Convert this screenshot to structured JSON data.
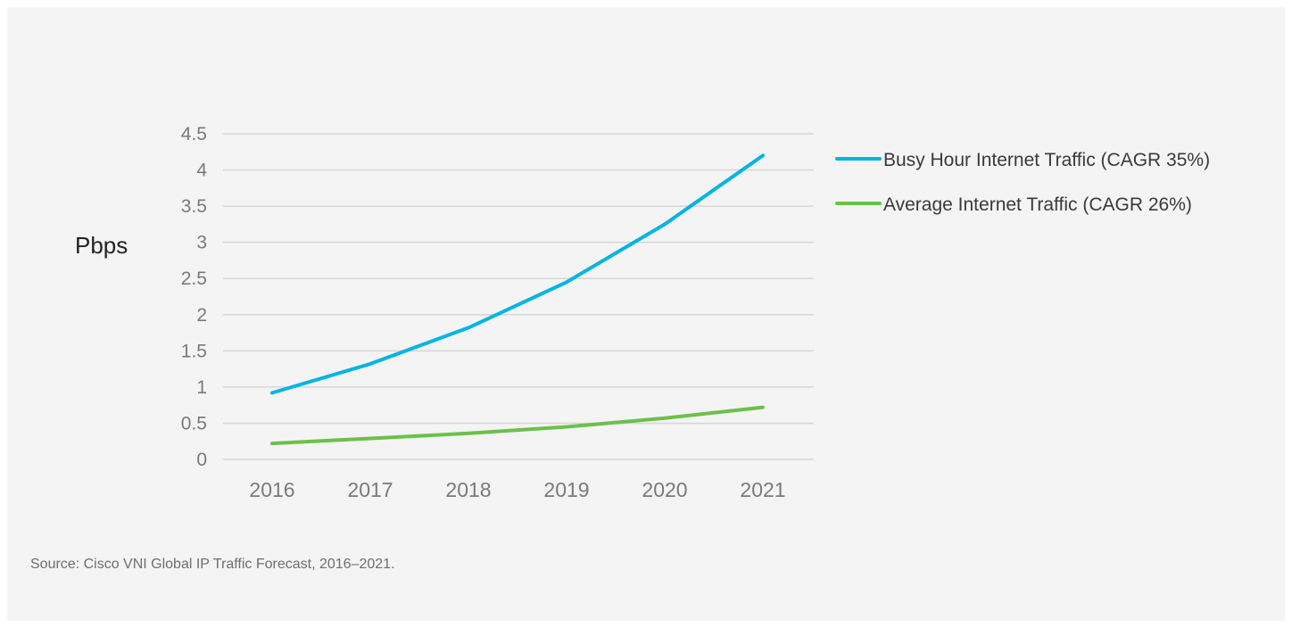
{
  "chart_data": {
    "type": "line",
    "title": "",
    "xlabel": "",
    "ylabel": "Pbps",
    "categories": [
      "2016",
      "2017",
      "2018",
      "2019",
      "2020",
      "2021"
    ],
    "ylim": [
      0,
      4.5
    ],
    "yticks": [
      0,
      0.5,
      1,
      1.5,
      2,
      2.5,
      3,
      3.5,
      4,
      4.5
    ],
    "ytick_labels": [
      "0",
      "0.5",
      "1",
      "1.5",
      "2",
      "2.5",
      "3",
      "3.5",
      "4",
      "4.5"
    ],
    "grid": "horizontal",
    "legend_position": "right",
    "series": [
      {
        "name": "Busy Hour Internet Traffic (CAGR 35%)",
        "color": "#00b5e2",
        "values": [
          0.92,
          1.32,
          1.82,
          2.45,
          3.25,
          4.2
        ]
      },
      {
        "name": "Average Internet Traffic (CAGR 26%)",
        "color": "#6cc04a",
        "values": [
          0.22,
          0.29,
          0.36,
          0.45,
          0.57,
          0.72
        ]
      }
    ]
  },
  "footer": {
    "source": "Source: Cisco VNI Global IP Traffic Forecast, 2016–2021."
  }
}
